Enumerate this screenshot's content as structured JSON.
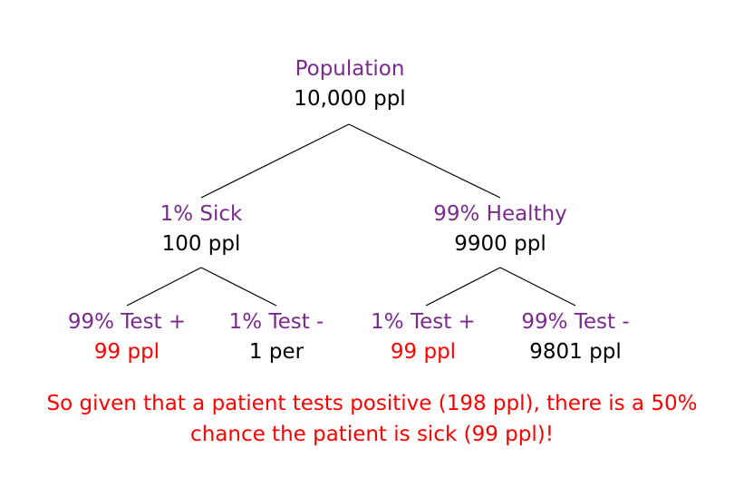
{
  "colors": {
    "label": "#7a2a8c",
    "count": "#000000",
    "highlight": "#ff0000",
    "edge": "#000000"
  },
  "tree": {
    "root": {
      "label": "Population",
      "count": "10,000 ppl"
    },
    "sick": {
      "label": "1% Sick",
      "count": "100 ppl",
      "test_positive": {
        "label": "99% Test +",
        "count": "99 ppl"
      },
      "test_negative": {
        "label": "1% Test -",
        "count": "1 per"
      }
    },
    "healthy": {
      "label": "99% Healthy",
      "count": "9900 ppl",
      "test_positive": {
        "label": "1% Test +",
        "count": "99 ppl"
      },
      "test_negative": {
        "label": "99% Test -",
        "count": "9801 ppl"
      }
    }
  },
  "conclusion": {
    "line1": "So given that a patient tests positive (198 ppl), there is a 50%",
    "line2": "chance the patient is sick (99 ppl)!"
  }
}
